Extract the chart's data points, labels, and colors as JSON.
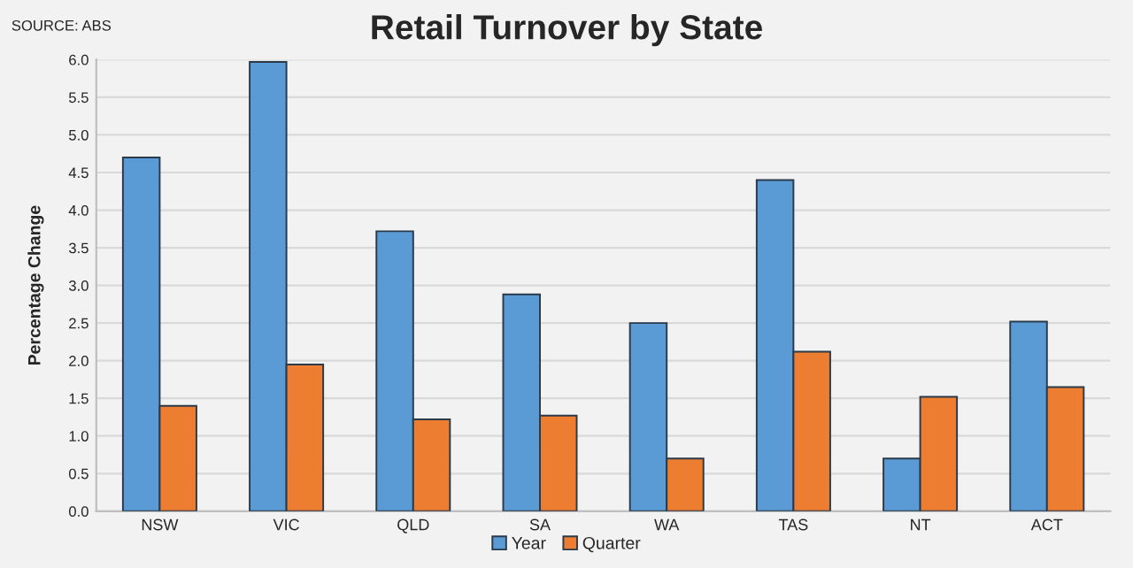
{
  "chart_data": {
    "type": "bar",
    "title": "Retail Turnover by State",
    "ylabel": "Percentage Change",
    "annotations": [
      "SOURCE: ABS"
    ],
    "categories": [
      "NSW",
      "VIC",
      "QLD",
      "SA",
      "WA",
      "TAS",
      "NT",
      "ACT"
    ],
    "series": [
      {
        "name": "Year",
        "color": "#5b9bd5",
        "values": [
          4.7,
          5.97,
          3.72,
          2.88,
          2.5,
          4.4,
          0.7,
          2.52
        ]
      },
      {
        "name": "Quarter",
        "color": "#ed7d31",
        "values": [
          1.4,
          1.95,
          1.22,
          1.27,
          0.7,
          2.12,
          1.52,
          1.65
        ]
      }
    ],
    "ylim": [
      0,
      6
    ],
    "yticks": [
      {
        "value": 0,
        "label": "0.0"
      },
      {
        "value": 0.5,
        "label": "0.5"
      },
      {
        "value": 1,
        "label": "1.0"
      },
      {
        "value": 1.5,
        "label": "1.5"
      },
      {
        "value": 2,
        "label": "2.0"
      },
      {
        "value": 2.5,
        "label": "2.5"
      },
      {
        "value": 3,
        "label": "3.0"
      },
      {
        "value": 3.5,
        "label": "3.5"
      },
      {
        "value": 4,
        "label": "4.0"
      },
      {
        "value": 4.5,
        "label": "4.5"
      },
      {
        "value": 5,
        "label": "5.0"
      },
      {
        "value": 5.5,
        "label": "5.5"
      },
      {
        "value": 6,
        "label": "6.0"
      }
    ],
    "grid": "y",
    "legend": "bottom"
  }
}
